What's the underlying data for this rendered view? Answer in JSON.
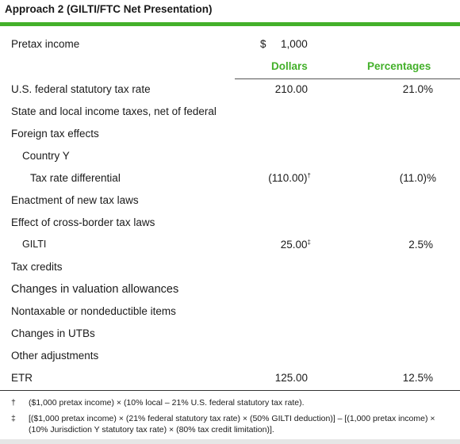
{
  "title": "Approach 2 (GILTI/FTC Net Presentation)",
  "colors": {
    "accent": "#43b02a",
    "text": "#1a1a1a"
  },
  "pretax": {
    "label": "Pretax income",
    "currency": "$",
    "value": "1,000"
  },
  "headers": {
    "dollars": "Dollars",
    "percentages": "Percentages"
  },
  "rows": [
    {
      "label": "U.S. federal statutory tax rate",
      "dollars": "210.00",
      "dollars_mark": "",
      "percent": "21.0%"
    },
    {
      "label": "State and local income taxes, net of federal",
      "dollars": "",
      "dollars_mark": "",
      "percent": ""
    },
    {
      "label": "Foreign tax effects",
      "dollars": "",
      "dollars_mark": "",
      "percent": ""
    },
    {
      "label": "Country Y",
      "dollars": "",
      "dollars_mark": "",
      "percent": ""
    },
    {
      "label": "Tax rate differential",
      "dollars": "(110.00)",
      "dollars_mark": "†",
      "percent": "(11.0)%"
    },
    {
      "label": "Enactment of new tax laws",
      "dollars": "",
      "dollars_mark": "",
      "percent": ""
    },
    {
      "label": "Effect of cross-border tax laws",
      "dollars": "",
      "dollars_mark": "",
      "percent": ""
    },
    {
      "label": "GILTI",
      "dollars": "25.00",
      "dollars_mark": "‡",
      "percent": "2.5%"
    },
    {
      "label": "Tax credits",
      "dollars": "",
      "dollars_mark": "",
      "percent": ""
    },
    {
      "label": "Changes in valuation allowances",
      "dollars": "",
      "dollars_mark": "",
      "percent": ""
    },
    {
      "label": "Nontaxable or nondeductible items",
      "dollars": "",
      "dollars_mark": "",
      "percent": ""
    },
    {
      "label": "Changes in UTBs",
      "dollars": "",
      "dollars_mark": "",
      "percent": ""
    },
    {
      "label": "Other adjustments",
      "dollars": "",
      "dollars_mark": "",
      "percent": ""
    },
    {
      "label": "ETR",
      "dollars": "125.00",
      "dollars_mark": "",
      "percent": "12.5%"
    }
  ],
  "footnotes": [
    {
      "mark": "†",
      "text": "($1,000 pretax income) × (10% local – 21% U.S. federal statutory tax rate)."
    },
    {
      "mark": "‡",
      "text": "[($1,000 pretax income) × (21% federal statutory tax rate) × (50% GILTI deduction)] – [(1,000 pretax income) × (10% Jurisdiction Y statutory tax rate) × (80% tax credit limitation)]."
    }
  ]
}
